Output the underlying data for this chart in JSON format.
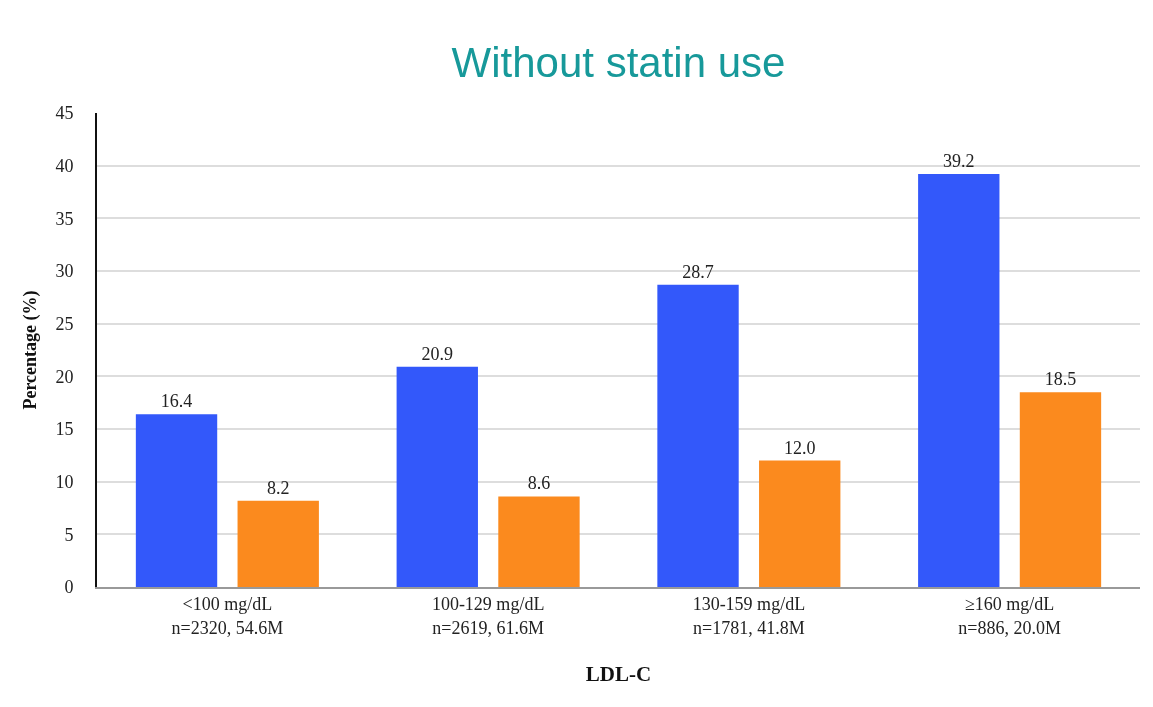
{
  "chart_data": {
    "type": "bar",
    "title": "Without statin use",
    "xlabel": "LDL-C",
    "ylabel": "Percentage (%)",
    "categories": [
      "<100 mg/dL\nn=2320, 54.6M",
      "100-129 mg/dL\nn=2619, 61.6M",
      "130-159 mg/dL\nn=1781, 41.8M",
      "≥160 mg/dL\nn=886, 20.0M"
    ],
    "series": [
      {
        "color": "#3358fa",
        "values": [
          16.4,
          20.9,
          28.7,
          39.2
        ],
        "value_labels": [
          "16.4",
          "20.9",
          "28.7",
          "39.2"
        ]
      },
      {
        "color": "#fb8a1e",
        "values": [
          8.2,
          8.6,
          12.0,
          18.5
        ],
        "value_labels": [
          "8.2",
          "8.6",
          "12.0",
          "18.5"
        ]
      }
    ],
    "ylim": [
      0,
      45
    ],
    "yticks": [
      0,
      5,
      10,
      15,
      20,
      25,
      30,
      35,
      40,
      45
    ],
    "grid": "y"
  }
}
